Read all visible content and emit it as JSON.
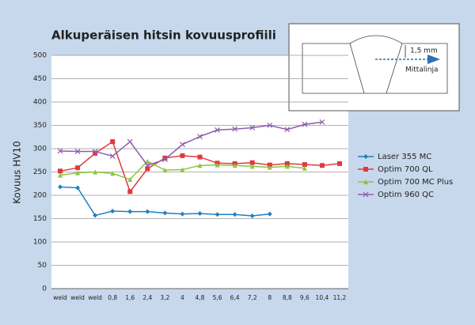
{
  "chart_data": {
    "type": "line",
    "title": "Alkuperäisen hitsin kovuusprofiili",
    "ylabel": "Kovuus HV10",
    "categories": [
      "weld",
      "weld",
      "weld",
      "0,8",
      "1,6",
      "2,4",
      "3,2",
      "4",
      "4,8",
      "5,6",
      "6,4",
      "7,2",
      "8",
      "8,8",
      "9,6",
      "10,4",
      "11,2"
    ],
    "series": [
      {
        "name": "Laser 355 MC",
        "color": "#1f7fc0",
        "marker": "diamond",
        "values": [
          218,
          216,
          157,
          166,
          165,
          165,
          162,
          160,
          161,
          159,
          159,
          156,
          160,
          null,
          null,
          null,
          null
        ]
      },
      {
        "name": "Optim 700 QL",
        "color": "#e0393e",
        "marker": "square",
        "values": [
          252,
          259,
          290,
          315,
          208,
          257,
          280,
          285,
          282,
          269,
          268,
          270,
          265,
          268,
          266,
          264,
          268
        ]
      },
      {
        "name": "Optim 700 MC Plus",
        "color": "#8cc63f",
        "marker": "triangle",
        "values": [
          243,
          248,
          250,
          247,
          234,
          273,
          254,
          255,
          264,
          265,
          264,
          262,
          260,
          262,
          258,
          null,
          null
        ]
      },
      {
        "name": "Optim 960 QC",
        "color": "#8e5ea8",
        "marker": "x",
        "values": [
          295,
          294,
          294,
          284,
          315,
          264,
          277,
          309,
          326,
          340,
          342,
          345,
          350,
          341,
          352,
          357,
          null
        ]
      }
    ],
    "ylim": [
      0,
      500
    ],
    "yticks": [
      0,
      50,
      100,
      150,
      200,
      250,
      300,
      350,
      400,
      450,
      500
    ],
    "grid": true,
    "legend": "right",
    "inset": {
      "dimension": "1,5 mm",
      "label": "Mittalinja"
    }
  }
}
